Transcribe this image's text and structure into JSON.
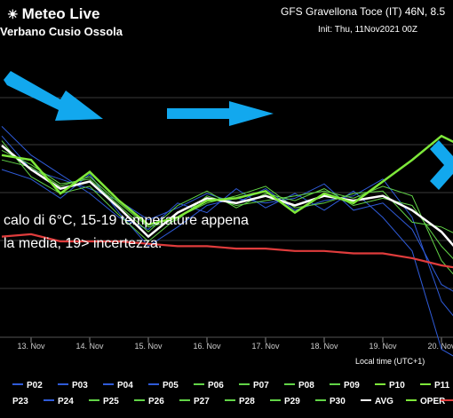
{
  "header": {
    "logo": "Meteo Live",
    "subtitle": "Verbano Cusio Ossola",
    "title": "GFS Gravellona Toce (IT) 46N, 8.5",
    "init": "Init: Thu, 11Nov2021 00Z"
  },
  "annotation": {
    "line1": "calo di 6°C, 15-19 temperature appena",
    "line2": "la media, 19> incertezza."
  },
  "chart_data": {
    "type": "line",
    "xlabel": "Local time (UTC+1)",
    "x_ticks": [
      "13. Nov",
      "14. Nov",
      "15. Nov",
      "16. Nov",
      "17. Nov",
      "18. Nov",
      "19. Nov",
      "20. Nov"
    ],
    "x": [
      12.5,
      13,
      13.5,
      14,
      14.5,
      15,
      15.5,
      16,
      16.5,
      17,
      17.5,
      18,
      18.5,
      19,
      19.5,
      20,
      20.5
    ],
    "colors": {
      "member_blue": "#2f5bd8",
      "member_green": "#62d447",
      "avg": "#ffffff",
      "oper": "#7ee83a",
      "p30": "#e03c3c"
    },
    "legend": {
      "row1": [
        "P02",
        "P03",
        "P04",
        "P05",
        "P06",
        "P07",
        "P08",
        "P09",
        "P10",
        "P11"
      ],
      "row2": [
        "P23",
        "P24",
        "P25",
        "P26",
        "P27",
        "P28",
        "P29",
        "P30",
        "AVG",
        "OPER"
      ]
    },
    "series": [
      {
        "name": "AVG",
        "values": [
          7.0,
          6.0,
          5.2,
          5.5,
          4.4,
          3.2,
          4.2,
          4.8,
          4.6,
          4.9,
          4.5,
          4.9,
          4.7,
          4.9,
          4.3,
          3.4,
          2.0
        ]
      },
      {
        "name": "OPER",
        "values": [
          6.6,
          6.4,
          5.0,
          5.9,
          4.7,
          3.7,
          4.0,
          4.7,
          4.8,
          5.1,
          4.2,
          5.0,
          4.6,
          5.5,
          6.4,
          7.4,
          6.8
        ]
      },
      {
        "name": "P30",
        "values": [
          3.2,
          3.3,
          3.0,
          3.0,
          3.0,
          2.9,
          2.8,
          2.8,
          2.7,
          2.7,
          2.6,
          2.6,
          2.5,
          2.5,
          2.3,
          2.0,
          1.8
        ]
      }
    ],
    "members_blue": [
      [
        7.4,
        6.0,
        5.6,
        5.2,
        4.7,
        3.9,
        4.4,
        5.0,
        4.6,
        5.2,
        4.3,
        4.7,
        4.9,
        5.6,
        4.0,
        0.5,
        -1.0
      ],
      [
        6.0,
        5.6,
        4.8,
        5.8,
        4.2,
        2.8,
        3.6,
        4.5,
        4.8,
        4.6,
        4.8,
        5.4,
        4.3,
        4.6,
        3.5,
        1.2,
        0.5
      ],
      [
        7.8,
        6.6,
        5.8,
        5.0,
        4.0,
        3.5,
        4.6,
        4.2,
        5.2,
        4.4,
        5.0,
        4.3,
        5.1,
        4.0,
        2.6,
        -1.5,
        -2.2
      ]
    ],
    "members_green": [
      [
        6.8,
        6.2,
        5.4,
        5.6,
        4.5,
        3.4,
        4.5,
        5.1,
        4.4,
        5.0,
        4.7,
        5.2,
        4.5,
        4.8,
        4.5,
        2.8,
        1.5
      ],
      [
        7.2,
        5.7,
        5.0,
        5.3,
        4.1,
        3.0,
        4.0,
        4.6,
        4.9,
        5.3,
        4.4,
        4.6,
        5.0,
        5.1,
        3.8,
        3.6,
        3.0
      ],
      [
        6.4,
        6.1,
        5.3,
        5.7,
        4.6,
        3.6,
        3.9,
        4.9,
        4.5,
        4.7,
        4.9,
        5.1,
        4.8,
        5.3,
        4.9,
        2.2,
        0.8
      ]
    ]
  }
}
